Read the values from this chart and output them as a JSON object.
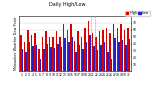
{
  "title": "Milwaukee Weather Dew Point",
  "subtitle": "Daily High/Low",
  "legend_labels": [
    "High",
    "Low"
  ],
  "legend_colors": [
    "#dd0000",
    "#2222cc"
  ],
  "bar_color_high": "#dd0000",
  "bar_color_low": "#2222cc",
  "background_color": "#ffffff",
  "plot_background": "#ffffff",
  "ylim": [
    0,
    80
  ],
  "yticks": [
    10,
    20,
    30,
    40,
    50,
    60,
    70
  ],
  "categories": [
    "1",
    "2",
    "3",
    "4",
    "5",
    "6",
    "7",
    "8",
    "9",
    "10",
    "11",
    "12",
    "13",
    "14",
    "15",
    "16",
    "17",
    "18",
    "19",
    "20",
    "21",
    "22",
    "23",
    "24",
    "25",
    "26",
    "27",
    "28",
    "29",
    "30",
    "31"
  ],
  "high_values": [
    52,
    42,
    60,
    52,
    55,
    32,
    50,
    58,
    50,
    50,
    58,
    50,
    68,
    60,
    68,
    44,
    58,
    50,
    62,
    72,
    55,
    50,
    58,
    60,
    62,
    55,
    68,
    62,
    68,
    60,
    62
  ],
  "low_values": [
    32,
    28,
    42,
    36,
    38,
    18,
    32,
    40,
    35,
    34,
    40,
    35,
    48,
    42,
    50,
    28,
    38,
    32,
    42,
    52,
    36,
    30,
    38,
    42,
    28,
    18,
    48,
    42,
    45,
    38,
    46
  ],
  "dashed_lines": [
    19.5,
    20.5
  ],
  "bar_width": 0.42,
  "grid_color": "#cccccc",
  "dashed_color": "#999999",
  "title_color": "#000000",
  "tick_fontsize": 2.2,
  "ylabel_rotation": 90,
  "ylabel_fontsize": 2.5,
  "legend_fontsize": 2.5
}
